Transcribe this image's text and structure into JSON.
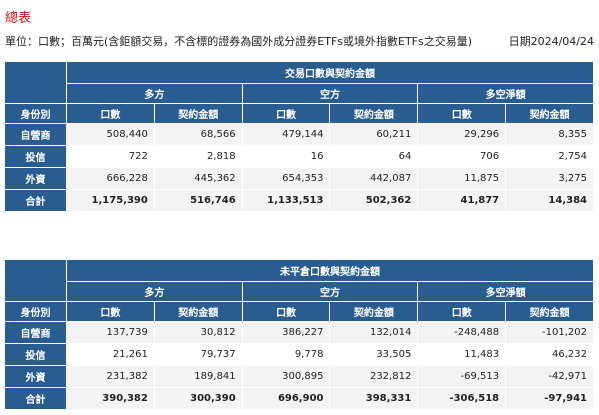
{
  "page": {
    "title": "總表",
    "unit_text": "單位：口數；百萬元(含鉅額交易，不含標的證券為國外成分證券ETFs或境外指數ETFs之交易量)",
    "date_text": "日期2024/04/24"
  },
  "tables": [
    {
      "title": "交易口數與契約金額",
      "groups": [
        "多方",
        "空方",
        "多空淨額"
      ],
      "row_header": "身份別",
      "columns": [
        "口數",
        "契約金額",
        "口數",
        "契約金額",
        "口數",
        "契約金額"
      ],
      "rows": [
        {
          "label": "自營商",
          "values": [
            "508,440",
            "68,566",
            "479,144",
            "60,211",
            "29,296",
            "8,355"
          ]
        },
        {
          "label": "投信",
          "values": [
            "722",
            "2,818",
            "16",
            "64",
            "706",
            "2,754"
          ]
        },
        {
          "label": "外資",
          "values": [
            "666,228",
            "445,362",
            "654,353",
            "442,087",
            "11,875",
            "3,275"
          ]
        },
        {
          "label": "合計",
          "values": [
            "1,175,390",
            "516,746",
            "1,133,513",
            "502,362",
            "41,877",
            "14,384"
          ]
        }
      ]
    },
    {
      "title": "未平倉口數與契約金額",
      "groups": [
        "多方",
        "空方",
        "多空淨額"
      ],
      "row_header": "身份別",
      "columns": [
        "口數",
        "契約金額",
        "口數",
        "契約金額",
        "口數",
        "契約金額"
      ],
      "rows": [
        {
          "label": "自營商",
          "values": [
            "137,739",
            "30,812",
            "386,227",
            "132,014",
            "-248,488",
            "-101,202"
          ]
        },
        {
          "label": "投信",
          "values": [
            "21,261",
            "79,737",
            "9,778",
            "33,505",
            "11,483",
            "46,232"
          ]
        },
        {
          "label": "外資",
          "values": [
            "231,382",
            "189,841",
            "300,895",
            "232,812",
            "-69,513",
            "-42,971"
          ]
        },
        {
          "label": "合計",
          "values": [
            "390,382",
            "300,390",
            "696,900",
            "398,331",
            "-306,518",
            "-97,941"
          ]
        }
      ]
    }
  ]
}
